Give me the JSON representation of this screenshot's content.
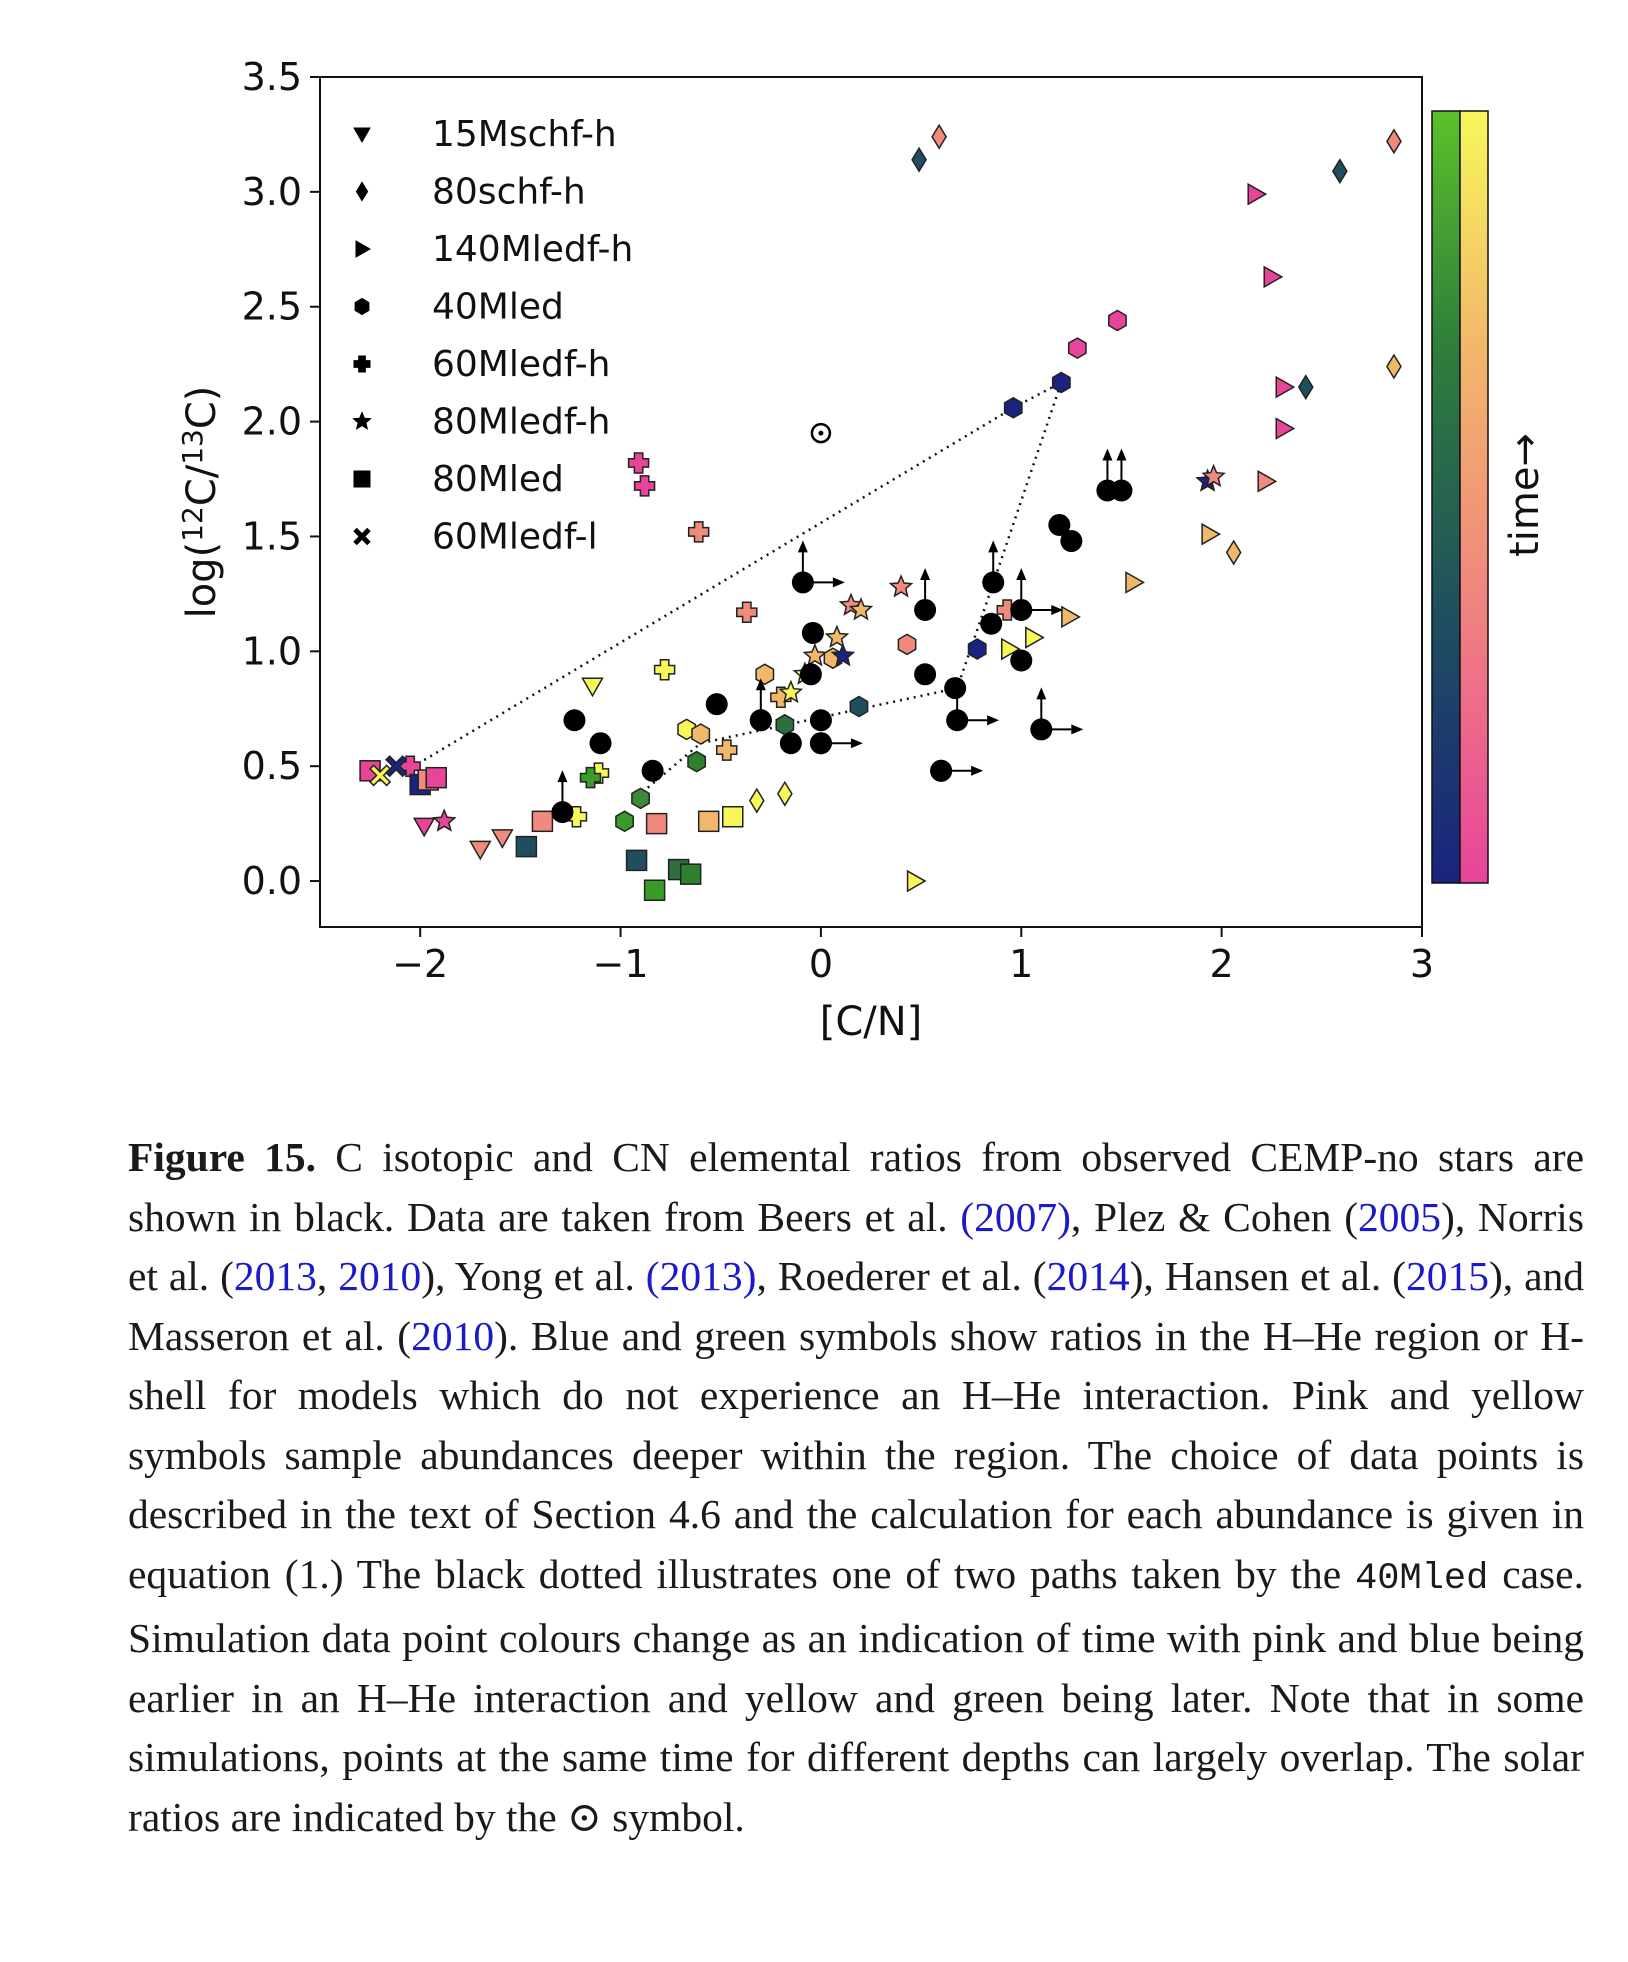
{
  "chart_data": {
    "type": "scatter",
    "xlabel": "[C/N]",
    "ylabel": "log(12C/13C)",
    "xlim": [
      -2.5,
      3
    ],
    "ylim": [
      -0.2,
      3.5
    ],
    "x_ticks": [
      "−2",
      "−1",
      "0",
      "1",
      "2",
      "3"
    ],
    "x_tick_values": [
      -2,
      -1,
      0,
      1,
      2,
      3
    ],
    "y_ticks": [
      "0.0",
      "0.5",
      "1.0",
      "1.5",
      "2.0",
      "2.5",
      "3.0",
      "3.5"
    ],
    "y_tick_values": [
      0,
      0.5,
      1.0,
      1.5,
      2.0,
      2.5,
      3.0,
      3.5
    ],
    "grid": false,
    "legend": {
      "placement": "top-left",
      "entries": [
        {
          "label": "15Mschf-h",
          "marker": "triangle-down"
        },
        {
          "label": "80schf-h",
          "marker": "diamond"
        },
        {
          "label": "140Mledf-h",
          "marker": "triangle-right"
        },
        {
          "label": "40Mled",
          "marker": "hexagon"
        },
        {
          "label": "60Mledf-h",
          "marker": "plus"
        },
        {
          "label": "80Mledf-h",
          "marker": "star"
        },
        {
          "label": "80Mled",
          "marker": "square"
        },
        {
          "label": "60Mledf-l",
          "marker": "x"
        }
      ]
    },
    "colorbar": {
      "label": "time→",
      "scales": [
        {
          "name": "blue-green",
          "colors": [
            "#1a237e",
            "#1f4f5f",
            "#3a8a3a",
            "#5cc02a"
          ]
        },
        {
          "name": "pink-yellow",
          "colors": [
            "#e8449a",
            "#f08a7c",
            "#f2b86a",
            "#f7f75a"
          ]
        }
      ]
    },
    "solar": {
      "x": 0,
      "y": 1.95
    },
    "path_40Mled": [
      [
        -2.07,
        0.48
      ],
      [
        0.96,
        2.06
      ],
      [
        1.2,
        2.17
      ],
      [
        0.85,
        1.27
      ],
      [
        0.68,
        0.84
      ],
      [
        -0.6,
        0.6
      ],
      [
        -0.9,
        0.38
      ]
    ],
    "observed_stars": {
      "color": "#000000",
      "points": [
        {
          "x": -1.23,
          "y": 0.7
        },
        {
          "x": -1.1,
          "y": 0.6
        },
        {
          "x": -0.84,
          "y": 0.48
        },
        {
          "x": -0.52,
          "y": 0.77
        },
        {
          "x": -0.3,
          "y": 0.7
        },
        {
          "x": -0.15,
          "y": 0.6
        },
        {
          "x": -0.04,
          "y": 1.08
        },
        {
          "x": -0.05,
          "y": 0.9
        },
        {
          "x": 0.0,
          "y": 0.7
        },
        {
          "x": 0.0,
          "y": 0.6
        },
        {
          "x": 0.52,
          "y": 0.9
        },
        {
          "x": 0.67,
          "y": 0.84
        },
        {
          "x": 0.6,
          "y": 0.48
        },
        {
          "x": 0.85,
          "y": 1.12
        },
        {
          "x": 1.0,
          "y": 0.96
        },
        {
          "x": 1.19,
          "y": 1.55
        },
        {
          "x": 1.25,
          "y": 1.48
        }
      ],
      "upper_limits": [
        {
          "x": -1.29,
          "y": 0.3,
          "up": true,
          "right": false
        },
        {
          "x": -0.3,
          "y": 0.7,
          "up": true,
          "right": false
        },
        {
          "x": -0.09,
          "y": 1.3,
          "up": true,
          "right": true
        },
        {
          "x": 0.52,
          "y": 1.18,
          "up": true,
          "right": false
        },
        {
          "x": 0.68,
          "y": 0.7,
          "up": true,
          "right": true
        },
        {
          "x": 0.6,
          "y": 0.48,
          "up": false,
          "right": true
        },
        {
          "x": 0.86,
          "y": 1.3,
          "up": true,
          "right": false
        },
        {
          "x": 1.0,
          "y": 1.18,
          "up": true,
          "right": true
        },
        {
          "x": 1.1,
          "y": 0.66,
          "up": true,
          "right": true
        },
        {
          "x": 1.43,
          "y": 1.7,
          "up": true,
          "right": false
        },
        {
          "x": 1.5,
          "y": 1.7,
          "up": true,
          "right": false
        },
        {
          "x": 0.0,
          "y": 0.6,
          "up": false,
          "right": true
        }
      ]
    },
    "series": [
      {
        "name": "15Mschf-h",
        "marker": "triangle-down",
        "points": [
          {
            "x": -1.98,
            "y": 0.24,
            "c": "#e8449a"
          },
          {
            "x": -1.7,
            "y": 0.14,
            "c": "#f08a7c"
          },
          {
            "x": -1.59,
            "y": 0.19,
            "c": "#f08a7c"
          },
          {
            "x": -1.14,
            "y": 0.85,
            "c": "#f7f75a"
          }
        ]
      },
      {
        "name": "80schf-h",
        "marker": "diamond",
        "points": [
          {
            "x": 0.49,
            "y": 3.14,
            "c": "#1f4f5f"
          },
          {
            "x": 0.59,
            "y": 3.24,
            "c": "#f08a7c"
          },
          {
            "x": 2.59,
            "y": 3.09,
            "c": "#1f4f5f"
          },
          {
            "x": 2.86,
            "y": 3.22,
            "c": "#f08a7c"
          },
          {
            "x": 2.86,
            "y": 2.24,
            "c": "#f2b86a"
          },
          {
            "x": 2.42,
            "y": 2.15,
            "c": "#1f4f5f"
          },
          {
            "x": 2.06,
            "y": 1.43,
            "c": "#f2b86a"
          },
          {
            "x": -0.32,
            "y": 0.35,
            "c": "#f7f75a"
          },
          {
            "x": -0.18,
            "y": 0.38,
            "c": "#f7f75a"
          }
        ]
      },
      {
        "name": "140Mledf-h",
        "marker": "triangle-right",
        "points": [
          {
            "x": 2.17,
            "y": 2.99,
            "c": "#e8449a"
          },
          {
            "x": 2.25,
            "y": 2.63,
            "c": "#e8449a"
          },
          {
            "x": 2.31,
            "y": 2.15,
            "c": "#e8449a"
          },
          {
            "x": 2.31,
            "y": 1.97,
            "c": "#e8449a"
          },
          {
            "x": 2.22,
            "y": 1.74,
            "c": "#f08a7c"
          },
          {
            "x": 1.94,
            "y": 1.51,
            "c": "#f2b86a"
          },
          {
            "x": 1.56,
            "y": 1.3,
            "c": "#f2b86a"
          },
          {
            "x": 1.24,
            "y": 1.15,
            "c": "#f2b86a"
          },
          {
            "x": 1.06,
            "y": 1.06,
            "c": "#f7f75a"
          },
          {
            "x": 0.94,
            "y": 1.01,
            "c": "#f7f75a"
          },
          {
            "x": 0.47,
            "y": -0.0,
            "c": "#f7f75a"
          }
        ]
      },
      {
        "name": "40Mled",
        "marker": "hexagon",
        "points": [
          {
            "x": 1.48,
            "y": 2.44,
            "c": "#e8449a"
          },
          {
            "x": 1.28,
            "y": 2.32,
            "c": "#e8449a"
          },
          {
            "x": 1.2,
            "y": 2.17,
            "c": "#1a237e"
          },
          {
            "x": 0.96,
            "y": 2.06,
            "c": "#1a237e"
          },
          {
            "x": 0.78,
            "y": 1.01,
            "c": "#1a237e"
          },
          {
            "x": 0.43,
            "y": 1.03,
            "c": "#f08a7c"
          },
          {
            "x": 0.06,
            "y": 0.97,
            "c": "#f2b86a"
          },
          {
            "x": 0.19,
            "y": 0.76,
            "c": "#1f4f5f"
          },
          {
            "x": -0.28,
            "y": 0.9,
            "c": "#f2b86a"
          },
          {
            "x": -0.67,
            "y": 0.66,
            "c": "#f7f75a"
          },
          {
            "x": -0.6,
            "y": 0.64,
            "c": "#f2b86a"
          },
          {
            "x": -0.18,
            "y": 0.68,
            "c": "#2f6f3f"
          },
          {
            "x": -0.62,
            "y": 0.52,
            "c": "#2f7f2f"
          },
          {
            "x": -0.9,
            "y": 0.36,
            "c": "#3a8a3a"
          },
          {
            "x": -0.98,
            "y": 0.26,
            "c": "#3a9a2a"
          }
        ]
      },
      {
        "name": "60Mledf-h",
        "marker": "plus",
        "points": [
          {
            "x": -0.91,
            "y": 1.82,
            "c": "#e8449a"
          },
          {
            "x": -0.88,
            "y": 1.72,
            "c": "#e8449a"
          },
          {
            "x": -0.61,
            "y": 1.52,
            "c": "#f08a7c"
          },
          {
            "x": -0.37,
            "y": 1.17,
            "c": "#f08a7c"
          },
          {
            "x": 0.93,
            "y": 1.18,
            "c": "#f08a7c"
          },
          {
            "x": -0.78,
            "y": 0.92,
            "c": "#f7f75a"
          },
          {
            "x": -0.2,
            "y": 0.8,
            "c": "#f2b86a"
          },
          {
            "x": -0.47,
            "y": 0.57,
            "c": "#f2b86a"
          },
          {
            "x": -1.11,
            "y": 0.47,
            "c": "#f7f75a"
          },
          {
            "x": -1.15,
            "y": 0.45,
            "c": "#3a9a2a"
          },
          {
            "x": -1.22,
            "y": 0.28,
            "c": "#f7f75a"
          },
          {
            "x": -2.05,
            "y": 0.5,
            "c": "#e8449a"
          }
        ]
      },
      {
        "name": "80Mledf-h",
        "marker": "star",
        "points": [
          {
            "x": 0.4,
            "y": 1.28,
            "c": "#f08a7c"
          },
          {
            "x": 0.15,
            "y": 1.2,
            "c": "#f08a7c"
          },
          {
            "x": 0.2,
            "y": 1.18,
            "c": "#f2b86a"
          },
          {
            "x": 0.08,
            "y": 1.06,
            "c": "#f2b86a"
          },
          {
            "x": 0.11,
            "y": 0.98,
            "c": "#1a237e"
          },
          {
            "x": -0.03,
            "y": 0.98,
            "c": "#f2b86a"
          },
          {
            "x": -0.08,
            "y": 0.9,
            "c": "#f7f75a"
          },
          {
            "x": -0.15,
            "y": 0.82,
            "c": "#f7f75a"
          },
          {
            "x": -1.88,
            "y": 0.26,
            "c": "#e8449a"
          },
          {
            "x": 1.93,
            "y": 1.74,
            "c": "#1a237e"
          },
          {
            "x": 1.96,
            "y": 1.76,
            "c": "#f08a7c"
          }
        ]
      },
      {
        "name": "80Mled",
        "marker": "square",
        "points": [
          {
            "x": -2.25,
            "y": 0.48,
            "c": "#e8449a"
          },
          {
            "x": -2.0,
            "y": 0.42,
            "c": "#1a237e"
          },
          {
            "x": -1.96,
            "y": 0.44,
            "c": "#f08a7c"
          },
          {
            "x": -1.92,
            "y": 0.45,
            "c": "#e8449a"
          },
          {
            "x": -1.39,
            "y": 0.26,
            "c": "#f08a7c"
          },
          {
            "x": -1.47,
            "y": 0.15,
            "c": "#1f4f5f"
          },
          {
            "x": -0.82,
            "y": 0.25,
            "c": "#f08a7c"
          },
          {
            "x": -0.56,
            "y": 0.26,
            "c": "#f2b86a"
          },
          {
            "x": -0.44,
            "y": 0.28,
            "c": "#f7f75a"
          },
          {
            "x": -0.92,
            "y": 0.09,
            "c": "#1f4f5f"
          },
          {
            "x": -0.71,
            "y": 0.05,
            "c": "#2f6f3f"
          },
          {
            "x": -0.65,
            "y": 0.03,
            "c": "#2f7f2f"
          },
          {
            "x": -0.83,
            "y": -0.04,
            "c": "#3a9a2a"
          }
        ]
      },
      {
        "name": "60Mledf-l",
        "marker": "x",
        "points": [
          {
            "x": -2.2,
            "y": 0.46,
            "c": "#f7f75a"
          },
          {
            "x": -2.12,
            "y": 0.5,
            "c": "#1a237e"
          }
        ]
      }
    ]
  },
  "caption": {
    "figure_label": "Figure 15.",
    "s1": " C isotopic and CN elemental ratios from observed CEMP-no stars are shown in black. Data are taken from Beers et al. ",
    "c1": "(2007)",
    "s2": ", Plez & Cohen (",
    "c2": "2005",
    "s3": "), Norris et al. (",
    "c3": "2013",
    "s4": ", ",
    "c4": "2010",
    "s5": "), Yong et al. ",
    "c5": "(2013)",
    "s6": ", Roederer et al. (",
    "c6": "2014",
    "s7": "), Hansen et al. (",
    "c7": "2015",
    "s8": "), and Masseron et al. (",
    "c8": "2010",
    "s9": "). Blue and green symbols show ratios in the H–He region or H-shell for models which do not experience an H–He interaction. Pink and yellow symbols sample abundances deeper within the region. The choice of data points is described in the text of Section 4.6 and the calculation for each abundance is given in equation (1.) The black dotted illustrates one of two paths taken by the ",
    "code": "40Mled",
    "s10": " case. Simulation data point colours change as an indication of time with pink and blue being earlier in an H–He interaction and yellow and green being later. Note that in some simulations, points at the same time for different depths can largely overlap. The solar ratios are indicated by the ⊙ symbol."
  }
}
